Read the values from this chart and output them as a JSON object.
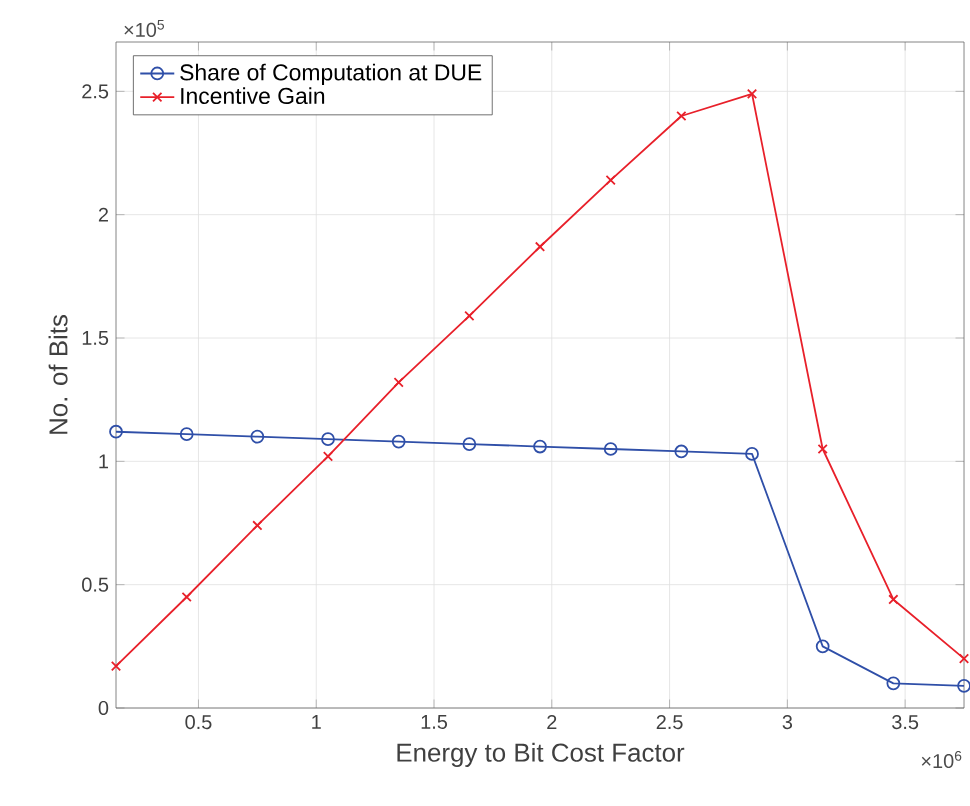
{
  "chart_data": {
    "type": "line",
    "xlabel": "Energy to Bit Cost Factor",
    "ylabel": "No. of Bits",
    "x": [
      0.15,
      0.45,
      0.75,
      1.05,
      1.35,
      1.65,
      1.95,
      2.25,
      2.55,
      2.85,
      3.15,
      3.45,
      3.75
    ],
    "series": [
      {
        "name": "Share of Computation at DUE",
        "color": "#2f4fa8",
        "marker": "circle",
        "values": [
          1.12,
          1.11,
          1.1,
          1.09,
          1.08,
          1.07,
          1.06,
          1.05,
          1.04,
          1.03,
          0.25,
          0.1,
          0.09
        ]
      },
      {
        "name": "Incentive Gain",
        "color": "#e8202a",
        "marker": "cross",
        "values": [
          0.17,
          0.45,
          0.74,
          1.02,
          1.32,
          1.59,
          1.87,
          2.14,
          2.4,
          2.49,
          1.05,
          0.44,
          0.2
        ]
      }
    ],
    "xlim": [
      0.15,
      3.75
    ],
    "ylim": [
      0,
      2.7
    ],
    "xticks": [
      0.5,
      1,
      1.5,
      2,
      2.5,
      3,
      3.5
    ],
    "yticks": [
      0,
      0.5,
      1,
      1.5,
      2,
      2.5
    ],
    "annotations": [
      "×10$^{5}$",
      "×10$^{6}$"
    ],
    "grid": true,
    "legend": "top left",
    "line_style": "solid"
  }
}
